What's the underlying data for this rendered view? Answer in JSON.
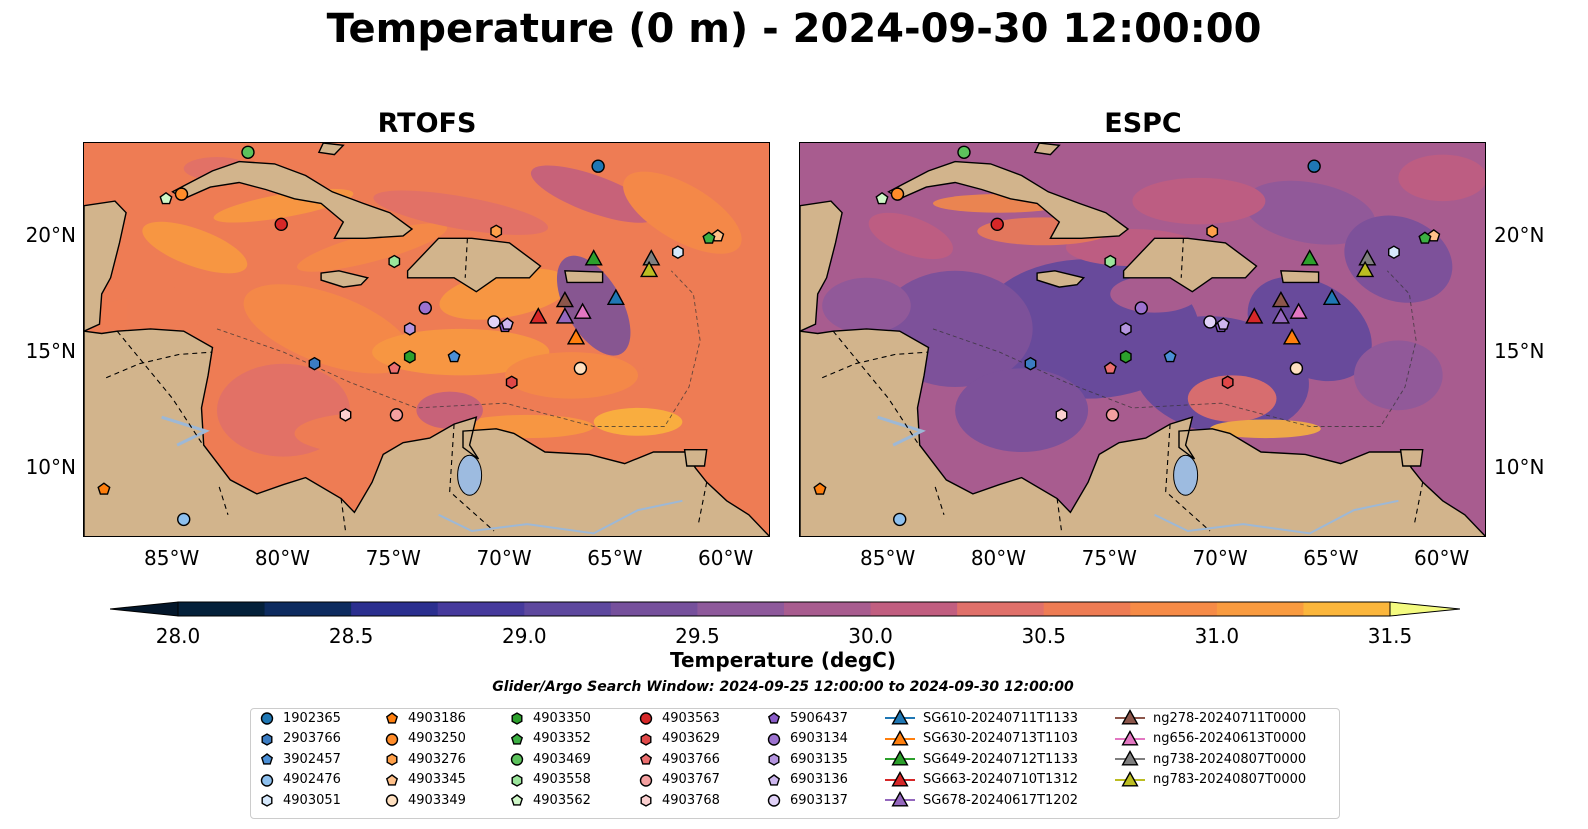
{
  "title": "Temperature (0 m) - 2024-09-30 12:00:00",
  "panels": [
    {
      "title": "RTOFS",
      "model": "rtofs"
    },
    {
      "title": "ESPC",
      "model": "espc"
    }
  ],
  "axes": {
    "lon_ticks": [
      "85°W",
      "80°W",
      "75°W",
      "70°W",
      "65°W",
      "60°W"
    ],
    "lat_ticks": [
      "20°N",
      "15°N",
      "10°N"
    ],
    "extent": {
      "lon_min": -89,
      "lon_max": -58,
      "lat_min": 7,
      "lat_max": 24
    }
  },
  "colorbar": {
    "label": "Temperature (degC)",
    "ticks": [
      "28.0",
      "28.5",
      "29.0",
      "29.5",
      "30.0",
      "30.5",
      "31.0",
      "31.5"
    ],
    "min": 28.0,
    "max": 31.5,
    "extend": "both",
    "colors": [
      "#04203a",
      "#0d2b5f",
      "#2b2f8f",
      "#463a9c",
      "#5e489e",
      "#76509c",
      "#8e599b",
      "#a85c8f",
      "#c15e80",
      "#e0706a",
      "#ee7c54",
      "#f68b47",
      "#f99b40",
      "#fbb63c",
      "#f9dd4b"
    ],
    "extend_low": "#03162a",
    "extend_high": "#f4fb80"
  },
  "legend": {
    "title": "Glider/Argo Search Window: 2024-09-25 12:00:00 to 2024-09-30 12:00:00",
    "items": [
      {
        "label": "1902365",
        "marker": "circle",
        "color": "#1f77b4"
      },
      {
        "label": "2903766",
        "marker": "hexagon",
        "color": "#3b7cc2"
      },
      {
        "label": "3902457",
        "marker": "pentagon",
        "color": "#4b8fd6"
      },
      {
        "label": "4902476",
        "marker": "circle",
        "color": "#8ec0ee"
      },
      {
        "label": "4903051",
        "marker": "hexagon",
        "color": "#d6e8fb"
      },
      {
        "label": "4903186",
        "marker": "pentagon",
        "color": "#ff7f0e"
      },
      {
        "label": "4903250",
        "marker": "circle",
        "color": "#ff8c2a"
      },
      {
        "label": "4903276",
        "marker": "hexagon",
        "color": "#ffa04a"
      },
      {
        "label": "4903345",
        "marker": "pentagon",
        "color": "#ffc089"
      },
      {
        "label": "4903349",
        "marker": "circle",
        "color": "#ffe0c0"
      },
      {
        "label": "4903350",
        "marker": "hexagon",
        "color": "#2ca02c"
      },
      {
        "label": "4903352",
        "marker": "pentagon",
        "color": "#3cb043"
      },
      {
        "label": "4903469",
        "marker": "circle",
        "color": "#5cc25c"
      },
      {
        "label": "4903558",
        "marker": "hexagon",
        "color": "#9be59b"
      },
      {
        "label": "4903562",
        "marker": "pentagon",
        "color": "#cff7c8"
      },
      {
        "label": "4903563",
        "marker": "circle",
        "color": "#d62728"
      },
      {
        "label": "4903629",
        "marker": "hexagon",
        "color": "#e04848"
      },
      {
        "label": "4903766",
        "marker": "pentagon",
        "color": "#ec6f6f"
      },
      {
        "label": "4903767",
        "marker": "circle",
        "color": "#f4a0a0"
      },
      {
        "label": "4903768",
        "marker": "hexagon",
        "color": "#fbd0d0"
      },
      {
        "label": "5906437",
        "marker": "pentagon",
        "color": "#8a5cc8"
      },
      {
        "label": "6903134",
        "marker": "circle",
        "color": "#9c72cf"
      },
      {
        "label": "6903135",
        "marker": "hexagon",
        "color": "#b595e0"
      },
      {
        "label": "6903136",
        "marker": "pentagon",
        "color": "#cdb6ee"
      },
      {
        "label": "6903137",
        "marker": "circle",
        "color": "#e1d2f8"
      },
      {
        "label": "SG610-20240711T1133",
        "marker": "triangle",
        "color": "#1f77b4"
      },
      {
        "label": "SG630-20240713T1103",
        "marker": "triangle",
        "color": "#ff7f0e"
      },
      {
        "label": "SG649-20240712T1133",
        "marker": "triangle",
        "color": "#2ca02c"
      },
      {
        "label": "SG663-20240710T1312",
        "marker": "triangle",
        "color": "#d62728"
      },
      {
        "label": "SG678-20240617T1202",
        "marker": "triangle",
        "color": "#9467bd"
      },
      {
        "label": "ng278-20240711T0000",
        "marker": "triangle",
        "color": "#8c564b"
      },
      {
        "label": "ng656-20240613T0000",
        "marker": "triangle",
        "color": "#e377c2"
      },
      {
        "label": "ng738-20240807T0000",
        "marker": "triangle",
        "color": "#7f7f7f"
      },
      {
        "label": "ng783-20240807T0000",
        "marker": "triangle",
        "color": "#bcbd22"
      }
    ]
  },
  "platforms": [
    {
      "id": "1902365",
      "lon": -65.8,
      "lat": 23.0
    },
    {
      "id": "2903766",
      "lon": -78.6,
      "lat": 14.5
    },
    {
      "id": "3902457",
      "lon": -72.3,
      "lat": 14.8
    },
    {
      "id": "4902476",
      "lon": -84.5,
      "lat": 7.8
    },
    {
      "id": "4903051",
      "lon": -62.2,
      "lat": 19.3
    },
    {
      "id": "4903186",
      "lon": -88.1,
      "lat": 9.1
    },
    {
      "id": "4903250",
      "lon": -84.6,
      "lat": 21.8
    },
    {
      "id": "4903276",
      "lon": -70.4,
      "lat": 20.2
    },
    {
      "id": "4903345",
      "lon": -60.4,
      "lat": 20.0
    },
    {
      "id": "4903349",
      "lon": -66.6,
      "lat": 14.3
    },
    {
      "id": "4903350",
      "lon": -74.3,
      "lat": 14.8
    },
    {
      "id": "4903352",
      "lon": -60.8,
      "lat": 19.9
    },
    {
      "id": "4903469",
      "lon": -81.6,
      "lat": 23.6
    },
    {
      "id": "4903558",
      "lon": -75.0,
      "lat": 18.9
    },
    {
      "id": "4903562",
      "lon": -85.3,
      "lat": 21.6
    },
    {
      "id": "4903563",
      "lon": -80.1,
      "lat": 20.5
    },
    {
      "id": "4903629",
      "lon": -69.7,
      "lat": 13.7
    },
    {
      "id": "4903766",
      "lon": -75.0,
      "lat": 14.3
    },
    {
      "id": "4903767",
      "lon": -74.9,
      "lat": 12.3
    },
    {
      "id": "4903768",
      "lon": -77.2,
      "lat": 12.3
    },
    {
      "id": "5906437",
      "lon": -70.0,
      "lat": 16.1
    },
    {
      "id": "6903134",
      "lon": -73.6,
      "lat": 16.9
    },
    {
      "id": "6903135",
      "lon": -74.3,
      "lat": 16.0
    },
    {
      "id": "6903136",
      "lon": -69.9,
      "lat": 16.2
    },
    {
      "id": "6903137",
      "lon": -70.5,
      "lat": 16.3
    },
    {
      "id": "SG610-20240711T1133",
      "lon": -65.0,
      "lat": 17.3
    },
    {
      "id": "SG630-20240713T1103",
      "lon": -66.8,
      "lat": 15.6
    },
    {
      "id": "SG649-20240712T1133",
      "lon": -66.0,
      "lat": 19.0
    },
    {
      "id": "SG663-20240710T1312",
      "lon": -68.5,
      "lat": 16.5
    },
    {
      "id": "SG678-20240617T1202",
      "lon": -67.3,
      "lat": 16.5
    },
    {
      "id": "ng278-20240711T0000",
      "lon": -67.3,
      "lat": 17.2
    },
    {
      "id": "ng656-20240613T0000",
      "lon": -66.5,
      "lat": 16.7
    },
    {
      "id": "ng738-20240807T0000",
      "lon": -63.4,
      "lat": 19.0
    },
    {
      "id": "ng783-20240807T0000",
      "lon": -63.5,
      "lat": 18.5
    }
  ]
}
